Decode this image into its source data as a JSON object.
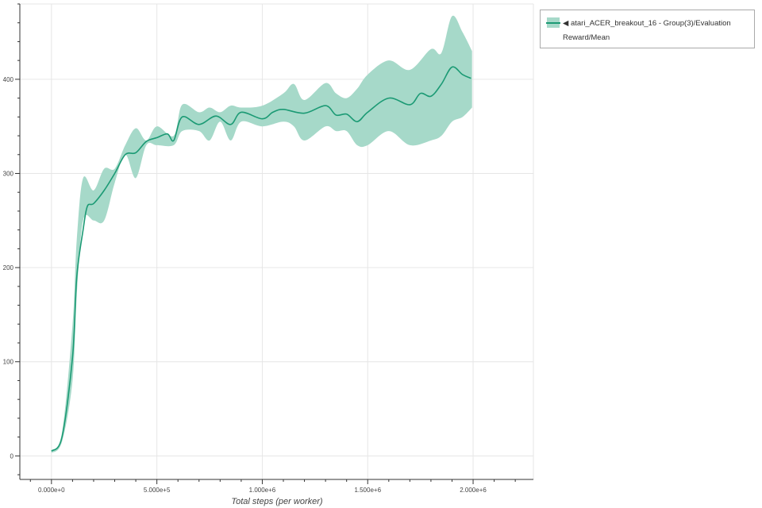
{
  "chart_data": {
    "type": "line",
    "title": "",
    "xlabel": "Total steps (per worker)",
    "ylabel": "",
    "xlim": [
      -150000,
      2286000
    ],
    "ylim": [
      -25,
      480
    ],
    "grid": true,
    "legend_position": "right",
    "x_ticks": [
      0,
      500000,
      1000000,
      1500000,
      2000000
    ],
    "x_tick_labels": [
      "0.000e+0",
      "5.000e+5",
      "1.000e+6",
      "1.500e+6",
      "2.000e+6"
    ],
    "y_ticks": [
      0,
      100,
      200,
      300,
      400
    ],
    "y_tick_labels": [
      "0",
      "100",
      "200",
      "300",
      "400"
    ],
    "colors": {
      "line": "#1b9a74",
      "band": "#a6d9c9"
    },
    "series": [
      {
        "name": "◀ atari_ACER_breakout_16 - Group(3)/Evaluation Reward/Mean",
        "x": [
          0,
          50000,
          100000,
          120000,
          150000,
          170000,
          200000,
          250000,
          300000,
          350000,
          400000,
          450000,
          500000,
          550000,
          580000,
          620000,
          700000,
          780000,
          850000,
          900000,
          1000000,
          1050000,
          1100000,
          1200000,
          1300000,
          1350000,
          1400000,
          1450000,
          1500000,
          1600000,
          1700000,
          1750000,
          1800000,
          1850000,
          1900000,
          1950000,
          1990000
        ],
        "values": [
          5,
          20,
          105,
          190,
          240,
          265,
          268,
          282,
          300,
          320,
          322,
          334,
          338,
          342,
          335,
          360,
          352,
          361,
          352,
          365,
          358,
          365,
          368,
          364,
          372,
          362,
          363,
          355,
          365,
          380,
          373,
          385,
          382,
          395,
          413,
          405,
          401
        ],
        "band": {
          "x": [
            0,
            50000,
            100000,
            120000,
            150000,
            200000,
            250000,
            300000,
            350000,
            400000,
            450000,
            500000,
            580000,
            620000,
            700000,
            750000,
            800000,
            850000,
            900000,
            1000000,
            1100000,
            1150000,
            1200000,
            1300000,
            1350000,
            1400000,
            1450000,
            1500000,
            1600000,
            1700000,
            1800000,
            1850000,
            1900000,
            1950000,
            1995000
          ],
          "lower": [
            3,
            15,
            80,
            170,
            250,
            250,
            250,
            290,
            320,
            295,
            330,
            330,
            330,
            345,
            345,
            335,
            355,
            335,
            355,
            350,
            355,
            350,
            335,
            350,
            345,
            345,
            330,
            330,
            345,
            330,
            335,
            340,
            355,
            360,
            370
          ],
          "upper": [
            6,
            25,
            140,
            230,
            295,
            282,
            305,
            305,
            330,
            348,
            335,
            350,
            340,
            373,
            365,
            370,
            365,
            372,
            370,
            372,
            385,
            395,
            378,
            396,
            385,
            380,
            390,
            405,
            420,
            410,
            432,
            428,
            467,
            450,
            430
          ]
        }
      }
    ]
  }
}
